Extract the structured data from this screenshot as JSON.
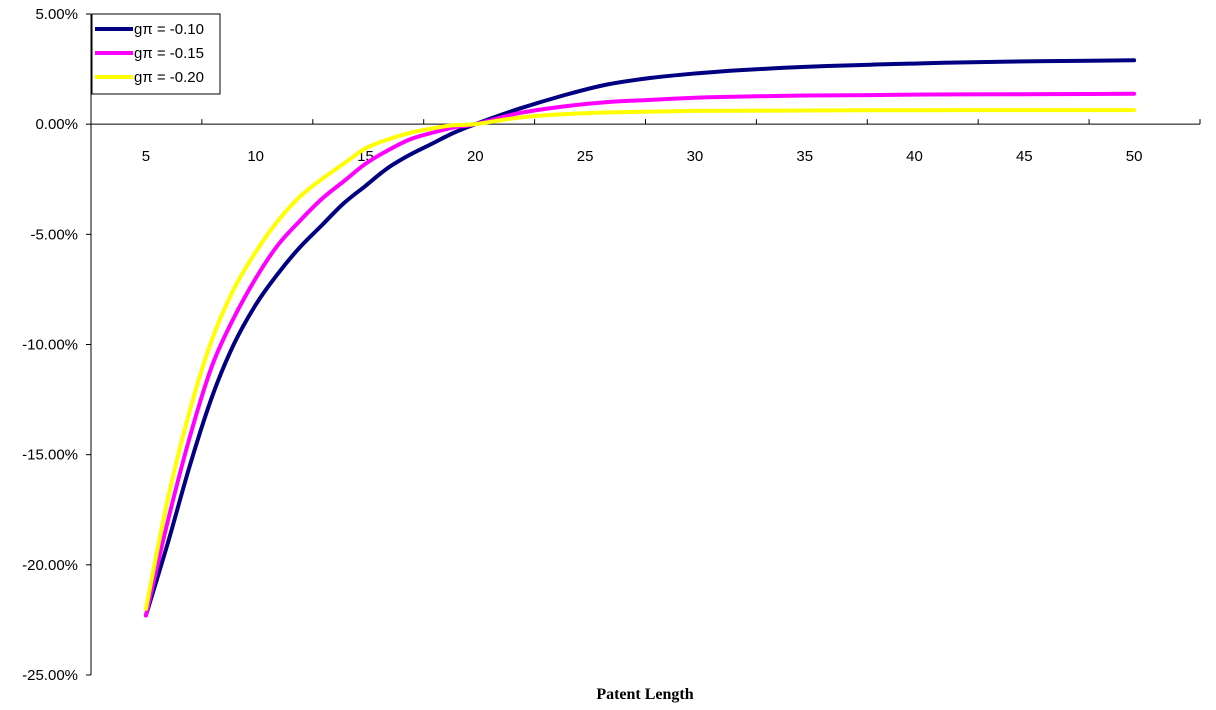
{
  "chart_data": {
    "type": "line",
    "title": "",
    "xlabel": "Patent Length",
    "ylabel": "",
    "x_ticks": [
      5,
      10,
      15,
      20,
      25,
      30,
      35,
      40,
      45,
      50
    ],
    "y_ticks": [
      -25,
      -20,
      -15,
      -10,
      -5,
      0,
      5
    ],
    "y_tick_labels": [
      "-25.00%",
      "-20.00%",
      "-15.00%",
      "-10.00%",
      "-5.00%",
      "0.00%",
      "5.00%"
    ],
    "xlim": [
      2.5,
      53
    ],
    "ylim": [
      -25,
      5
    ],
    "grid": false,
    "legend_position": "top-left",
    "x": [
      5,
      6,
      7,
      8,
      9,
      10,
      11,
      12,
      13,
      14,
      15,
      16,
      17,
      18,
      19,
      20,
      22,
      24,
      26,
      28,
      30,
      32,
      35,
      38,
      40,
      42,
      45,
      48,
      50
    ],
    "series": [
      {
        "name": "gπ = -0.10",
        "color": "#000080",
        "values": [
          -22.3,
          -19.0,
          -15.5,
          -12.4,
          -10.0,
          -8.2,
          -6.8,
          -5.6,
          -4.6,
          -3.6,
          -2.8,
          -2.0,
          -1.4,
          -0.9,
          -0.4,
          0.0,
          0.7,
          1.3,
          1.8,
          2.1,
          2.3,
          2.45,
          2.6,
          2.7,
          2.75,
          2.8,
          2.85,
          2.88,
          2.9
        ]
      },
      {
        "name": "gπ = -0.15",
        "color": "#ff00ff",
        "values": [
          -22.3,
          -18.0,
          -14.2,
          -11.0,
          -8.8,
          -7.0,
          -5.5,
          -4.4,
          -3.4,
          -2.6,
          -1.8,
          -1.2,
          -0.7,
          -0.4,
          -0.15,
          0.0,
          0.5,
          0.8,
          1.0,
          1.1,
          1.2,
          1.25,
          1.3,
          1.32,
          1.34,
          1.35,
          1.36,
          1.37,
          1.38
        ]
      },
      {
        "name": "gπ = -0.20",
        "color": "#ffff00",
        "values": [
          -22.0,
          -17.0,
          -13.0,
          -9.8,
          -7.5,
          -5.8,
          -4.4,
          -3.3,
          -2.5,
          -1.8,
          -1.1,
          -0.7,
          -0.4,
          -0.2,
          -0.05,
          0.0,
          0.3,
          0.45,
          0.53,
          0.57,
          0.6,
          0.61,
          0.62,
          0.63,
          0.63,
          0.64,
          0.64,
          0.64,
          0.64
        ]
      }
    ]
  }
}
